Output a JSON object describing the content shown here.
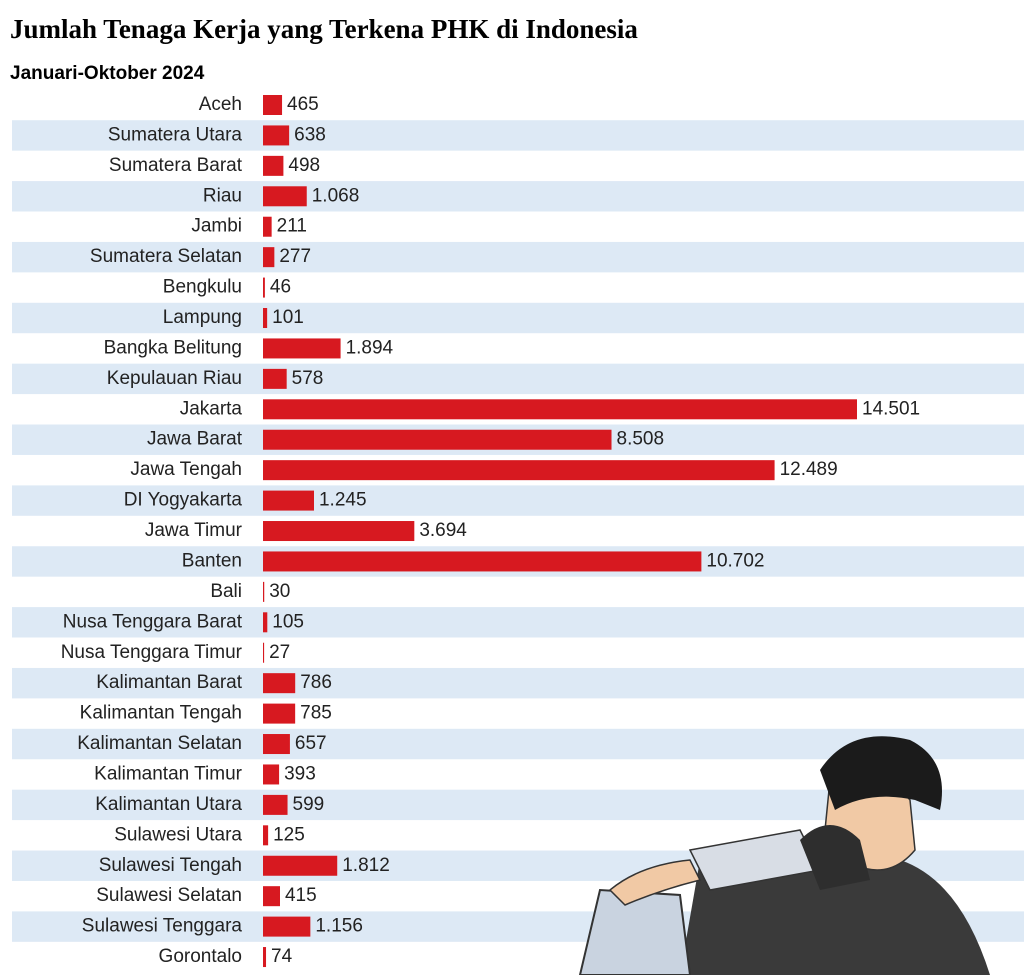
{
  "chart_data": {
    "type": "bar",
    "orientation": "horizontal",
    "title": "Jumlah Tenaga Kerja yang Terkena PHK di Indonesia",
    "subtitle": "Januari-Oktober 2024",
    "color": "#d71920",
    "categories": [
      "Aceh",
      "Sumatera Utara",
      "Sumatera Barat",
      "Riau",
      "Jambi",
      "Sumatera Selatan",
      "Bengkulu",
      "Lampung",
      "Bangka Belitung",
      "Kepulauan Riau",
      "Jakarta",
      "Jawa Barat",
      "Jawa Tengah",
      "DI Yogyakarta",
      "Jawa Timur",
      "Banten",
      "Bali",
      "Nusa Tenggara Barat",
      "Nusa Tenggara Timur",
      "Kalimantan Barat",
      "Kalimantan Tengah",
      "Kalimantan Selatan",
      "Kalimantan Timur",
      "Kalimantan Utara",
      "Sulawesi Utara",
      "Sulawesi Tengah",
      "Sulawesi Selatan",
      "Sulawesi Tenggara",
      "Gorontalo"
    ],
    "values": [
      465,
      638,
      498,
      1068,
      211,
      277,
      46,
      101,
      1894,
      578,
      14501,
      8508,
      12489,
      1245,
      3694,
      10702,
      30,
      105,
      27,
      786,
      785,
      657,
      393,
      599,
      125,
      1812,
      415,
      1156,
      74
    ],
    "value_labels": [
      "465",
      "638",
      "498",
      "1.068",
      "211",
      "277",
      "46",
      "101",
      "1.894",
      "578",
      "14.501",
      "8.508",
      "12.489",
      "1.245",
      "3.694",
      "10.702",
      "30",
      "105",
      "27",
      "786",
      "785",
      "657",
      "393",
      "599",
      "125",
      "1.812",
      "415",
      "1.156",
      "74"
    ]
  }
}
